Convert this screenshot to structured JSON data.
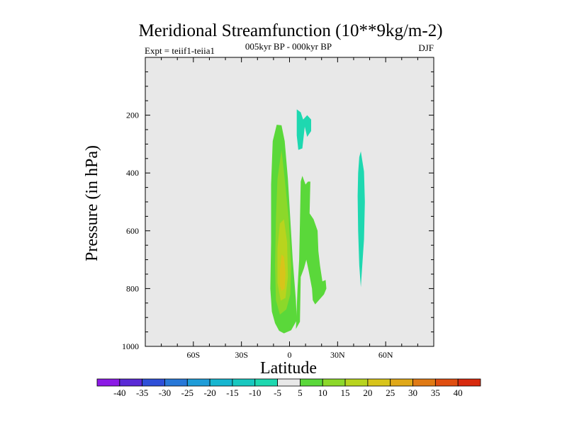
{
  "chart_data": {
    "type": "contour",
    "title": "Meridional Streamfunction (10**9kg/m-2)",
    "subtitle": "005kyr BP - 000kyr BP",
    "left_annotation": "Expt = teiif1-teiia1",
    "right_annotation": "DJF",
    "xlabel": "Latitude",
    "ylabel": "Pressure (in hPa)",
    "xlim": [
      -90,
      90
    ],
    "ylim": [
      1000,
      0
    ],
    "x_ticks": [
      {
        "value": -60,
        "label": "60S"
      },
      {
        "value": -30,
        "label": "30S"
      },
      {
        "value": 0,
        "label": "0"
      },
      {
        "value": 30,
        "label": "30N"
      },
      {
        "value": 60,
        "label": "60N"
      }
    ],
    "y_ticks": [
      {
        "value": 200,
        "label": "200"
      },
      {
        "value": 400,
        "label": "400"
      },
      {
        "value": 600,
        "label": "600"
      },
      {
        "value": 800,
        "label": "800"
      },
      {
        "value": 1000,
        "label": "1000"
      }
    ],
    "background_color": "#e8e8e8",
    "colorbar": {
      "labels": [
        "-40",
        "-35",
        "-30",
        "-25",
        "-20",
        "-15",
        "-10",
        "-5",
        "5",
        "10",
        "15",
        "20",
        "25",
        "30",
        "35",
        "40"
      ],
      "colors": [
        "#8c1ae6",
        "#5a2ad6",
        "#2e4fd8",
        "#2878d8",
        "#1e9cd8",
        "#16b6d0",
        "#18c8c0",
        "#1ed8b0",
        "#e8e8e8",
        "#5ad83a",
        "#8cd82a",
        "#b8d41e",
        "#d8c41a",
        "#e0a818",
        "#e07a14",
        "#e04e10",
        "#d82a0e"
      ]
    },
    "regions": [
      {
        "name": "positive-5-10-core",
        "level": "5 to 10",
        "color": "#5ad83a",
        "polygon": [
          [
            -6.5,
            946
          ],
          [
            -3.5,
            955
          ],
          [
            1,
            944
          ],
          [
            4.5,
            910
          ],
          [
            4,
            840
          ],
          [
            2,
            700
          ],
          [
            -1,
            420
          ],
          [
            -3,
            290
          ],
          [
            -5,
            235
          ],
          [
            -8,
            233
          ],
          [
            -10.5,
            290
          ],
          [
            -11.5,
            440
          ],
          [
            -11.5,
            640
          ],
          [
            -12,
            800
          ],
          [
            -11,
            880
          ],
          [
            -9,
            920
          ]
        ]
      },
      {
        "name": "positive-10-15-core",
        "level": "10 to 15",
        "color": "#8cd82a",
        "polygon": [
          [
            -6,
            890
          ],
          [
            -2,
            872
          ],
          [
            0.5,
            820
          ],
          [
            1,
            720
          ],
          [
            -0.5,
            560
          ],
          [
            -3,
            420
          ],
          [
            -5,
            320
          ],
          [
            -7.5,
            420
          ],
          [
            -8.5,
            560
          ],
          [
            -9,
            720
          ],
          [
            -8.5,
            840
          ]
        ]
      },
      {
        "name": "positive-15-20-core",
        "level": "15 to 20",
        "color": "#b8d41e",
        "polygon": [
          [
            -5.5,
            842
          ],
          [
            -2.5,
            832
          ],
          [
            -1,
            760
          ],
          [
            -1.5,
            640
          ],
          [
            -3.5,
            560
          ],
          [
            -6,
            575
          ],
          [
            -7.5,
            660
          ],
          [
            -7.5,
            780
          ]
        ]
      },
      {
        "name": "positive-20-25-core",
        "level": "20 to 25",
        "color": "#d8c41a",
        "polygon": [
          [
            -5,
            808
          ],
          [
            -3,
            800
          ],
          [
            -2.5,
            745
          ],
          [
            -3.5,
            690
          ],
          [
            -5,
            682
          ],
          [
            -6,
            735
          ],
          [
            -6,
            790
          ]
        ]
      },
      {
        "name": "positive-5-10-secondary",
        "level": "5 to 10",
        "color": "#5ad83a",
        "polygon": [
          [
            4,
            940
          ],
          [
            6.5,
            915
          ],
          [
            7,
            760
          ],
          [
            9,
            730
          ],
          [
            10.5,
            700
          ],
          [
            12,
            740
          ],
          [
            14,
            800
          ],
          [
            14.5,
            840
          ],
          [
            16,
            855
          ],
          [
            21.5,
            820
          ],
          [
            23,
            800
          ],
          [
            22.5,
            770
          ],
          [
            20.5,
            775
          ],
          [
            19,
            720
          ],
          [
            18,
            670
          ],
          [
            17.5,
            600
          ],
          [
            15,
            560
          ],
          [
            12.5,
            540
          ],
          [
            13,
            430
          ],
          [
            11.5,
            430
          ],
          [
            10,
            440
          ],
          [
            8,
            410
          ],
          [
            7,
            430
          ],
          [
            6.5,
            570
          ],
          [
            6,
            700
          ],
          [
            5,
            800
          ]
        ]
      },
      {
        "name": "negative-5-upper",
        "level": "-10 to -5",
        "color": "#1ed8b0",
        "polygon": [
          [
            4.5,
            180
          ],
          [
            7,
            190
          ],
          [
            8.5,
            215
          ],
          [
            11,
            200
          ],
          [
            13.5,
            215
          ],
          [
            13.5,
            255
          ],
          [
            11,
            275
          ],
          [
            9.5,
            240
          ],
          [
            8,
            315
          ],
          [
            5.5,
            320
          ],
          [
            4.5,
            270
          ]
        ]
      },
      {
        "name": "negative-5-right",
        "level": "-10 to -5",
        "color": "#1ed8b0",
        "polygon": [
          [
            44.5,
            325
          ],
          [
            46.5,
            395
          ],
          [
            47,
            500
          ],
          [
            46.5,
            630
          ],
          [
            45.5,
            710
          ],
          [
            44.5,
            795
          ],
          [
            43.5,
            720
          ],
          [
            42.8,
            600
          ],
          [
            42.5,
            480
          ],
          [
            42.8,
            400
          ],
          [
            43.5,
            345
          ]
        ]
      }
    ]
  }
}
